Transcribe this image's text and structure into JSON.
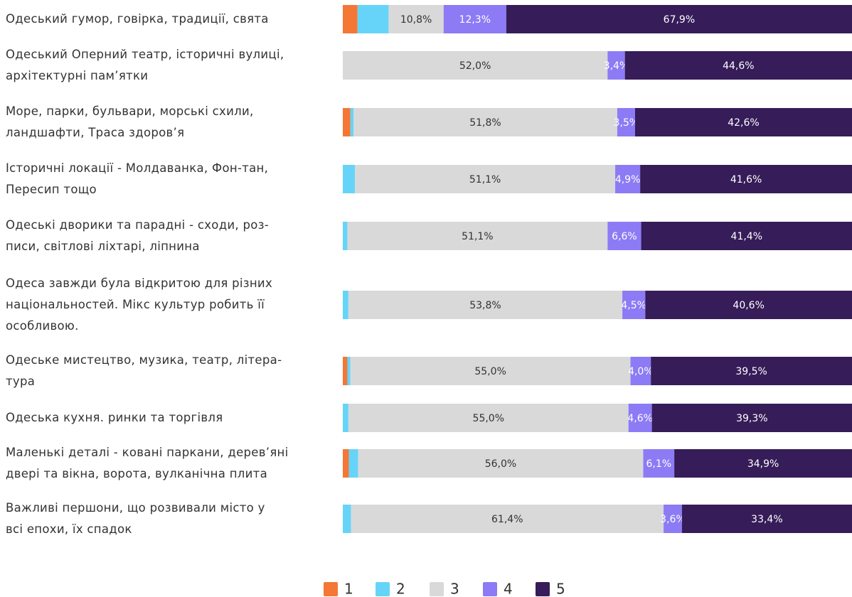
{
  "chart_data": {
    "type": "stacked-bar-horizontal",
    "categories": [
      "Одеський гумор, говірка, традиції, свята",
      "Одеський Оперний театр, історичні вулиці,\nархітектурні пам’ятки",
      "Море, парки, бульвари, морські схили,\nландшафти, Траса здоров’я",
      "Історичні локації - Молдаванка, Фон-тан,\nПересип тощо",
      "Одеські дворики та парадні - сходи, роз-\nписи, світлові ліхтарі, ліпнина",
      "Одеса завжди була відкритою для різних\nнаціональностей. Мікс культур робить її\nособливою.",
      "Одеське мистецтво, музика, театр, літера-\nтура",
      "Одеська кухня. ринки та торгівля",
      "Маленькі деталі - ковані паркани, дерев’яні\nдвері та вікна, ворота, вулканічна плита",
      "Важливі першони, що розвивали місто у\nвсі епохи, їх спадок"
    ],
    "xlim": [
      0,
      100
    ],
    "series": [
      {
        "name": "1",
        "color": "#f47735",
        "values": [
          2.9,
          0,
          1.5,
          0,
          0,
          0,
          0.9,
          0,
          1.2,
          0
        ]
      },
      {
        "name": "2",
        "color": "#66d4f9",
        "values": [
          6.1,
          0,
          0.6,
          2.4,
          0.9,
          1.1,
          0.6,
          1.1,
          1.8,
          1.6
        ]
      },
      {
        "name": "3",
        "color": "#d9d9d9",
        "values": [
          10.8,
          52.0,
          51.8,
          51.1,
          51.1,
          53.8,
          55.0,
          55.0,
          56.0,
          61.4
        ],
        "value_labels": [
          "10,8%",
          "52,0%",
          "51,8%",
          "51,1%",
          "51,1%",
          "53,8%",
          "55,0%",
          "55,0%",
          "56,0%",
          "61,4%"
        ]
      },
      {
        "name": "4",
        "color": "#8c7bf5",
        "values": [
          12.3,
          3.4,
          3.5,
          4.9,
          6.6,
          4.5,
          4.0,
          4.6,
          6.1,
          3.6
        ],
        "value_labels": [
          "12,3%",
          "3,4%",
          "3,5%",
          "4,9%",
          "6,6%",
          "4,5%",
          "4,0%",
          "4,6%",
          "6,1%",
          "3,6%"
        ]
      },
      {
        "name": "5",
        "color": "#361c58",
        "values": [
          67.9,
          44.6,
          42.6,
          41.6,
          41.4,
          40.6,
          39.5,
          39.3,
          34.9,
          33.4
        ],
        "value_labels": [
          "67,9%",
          "44,6%",
          "42,6%",
          "41,6%",
          "41,4%",
          "40,6%",
          "39,5%",
          "39,3%",
          "34,9%",
          "33,4%"
        ]
      }
    ]
  }
}
